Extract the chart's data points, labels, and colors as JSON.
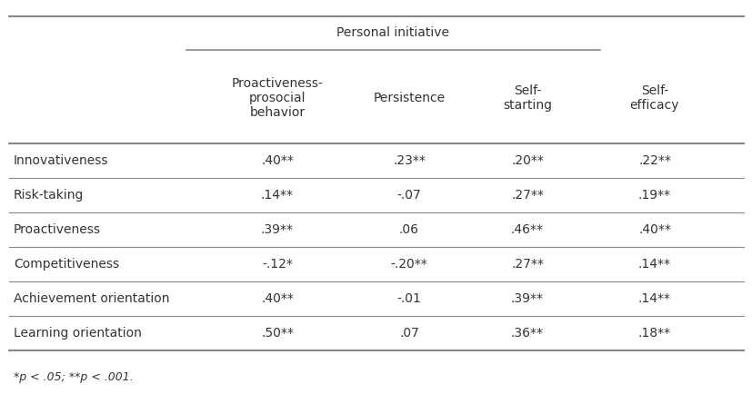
{
  "header_group": "Personal initiative",
  "col_headers": [
    "Proactiveness-\nprosocial\nbehavior",
    "Persistence",
    "Self-\nstarting",
    "Self-\nefficacy"
  ],
  "row_labels": [
    "Innovativeness",
    "Risk-taking",
    "Proactiveness",
    "Competitiveness",
    "Achievement orientation",
    "Learning orientation"
  ],
  "data": [
    [
      ".40**",
      ".23**",
      ".20**",
      ".22**"
    ],
    [
      ".14**",
      "-.07",
      ".27**",
      ".19**"
    ],
    [
      ".39**",
      ".06",
      ".46**",
      ".40**"
    ],
    [
      "-.12*",
      "-.20**",
      ".27**",
      ".14**"
    ],
    [
      ".40**",
      "-.01",
      ".39**",
      ".14**"
    ],
    [
      ".50**",
      ".07",
      ".36**",
      ".18**"
    ]
  ],
  "footnote": "*p < .05; **p < .001.",
  "bg_color": "#ffffff",
  "text_color": "#333333",
  "line_color": "#888888",
  "font_size": 10,
  "footnote_font_size": 9
}
